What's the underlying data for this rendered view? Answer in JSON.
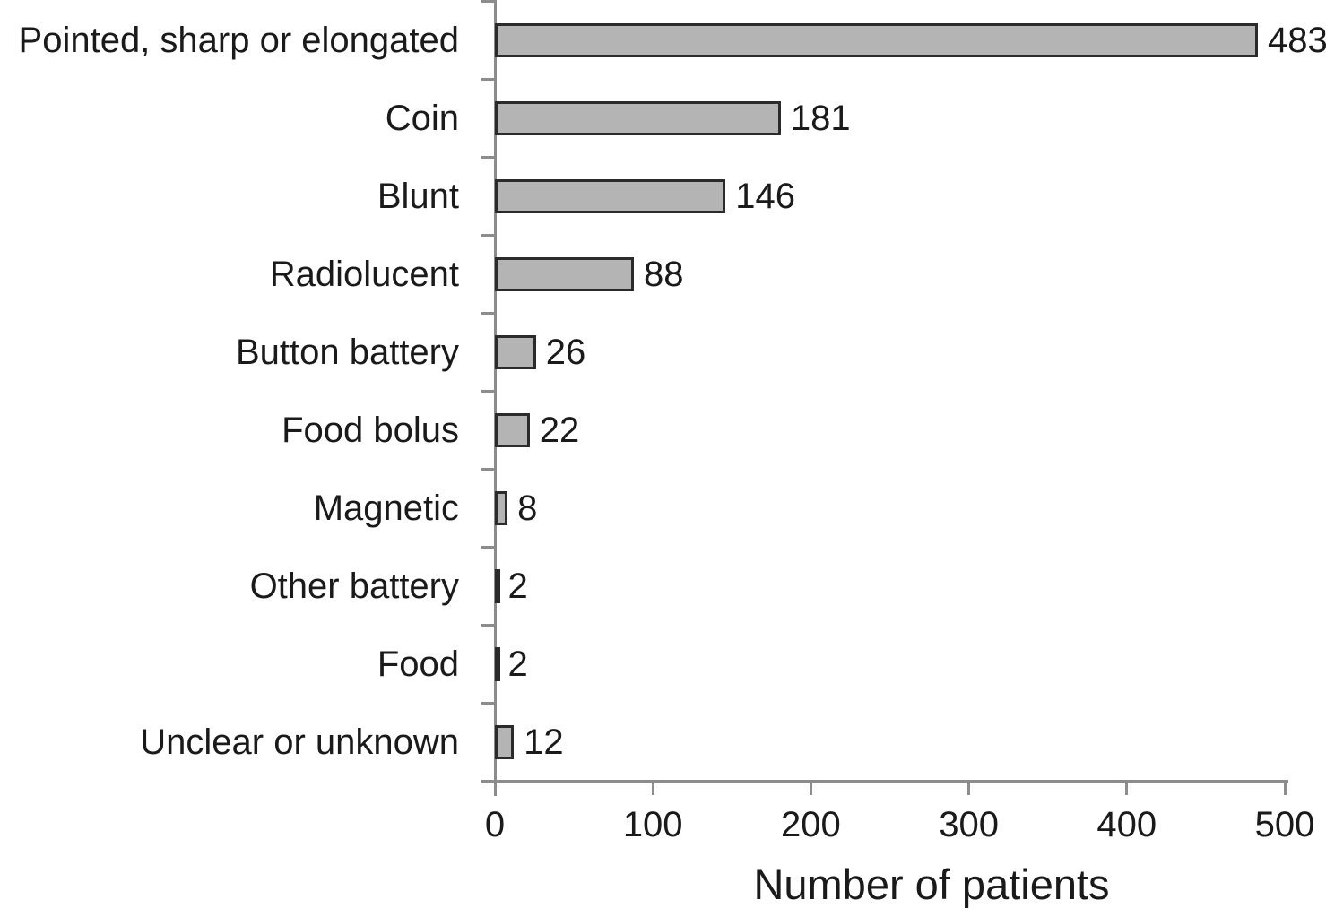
{
  "chart_data": {
    "type": "bar",
    "orientation": "horizontal",
    "title": "",
    "xlabel": "Number of patients",
    "ylabel": "",
    "categories": [
      "Pointed, sharp or elongated",
      "Coin",
      "Blunt",
      "Radiolucent",
      "Button battery",
      "Food bolus",
      "Magnetic",
      "Other battery",
      "Food",
      "Unclear or unknown"
    ],
    "values": [
      483,
      181,
      146,
      88,
      26,
      22,
      8,
      2,
      2,
      12
    ],
    "value_labels": [
      "483",
      "181",
      "146",
      "88",
      "26",
      "22",
      "8",
      "2",
      "2",
      "12"
    ],
    "xlim": [
      0,
      500
    ],
    "xticks": [
      "0",
      "100",
      "200",
      "300",
      "400",
      "500"
    ],
    "grid": false,
    "legend": false,
    "colors": {
      "bar_fill": "#b4b4b4",
      "bar_border": "#2b2b2b",
      "axis": "#8c8c8c",
      "text": "#1a1a1a"
    }
  }
}
